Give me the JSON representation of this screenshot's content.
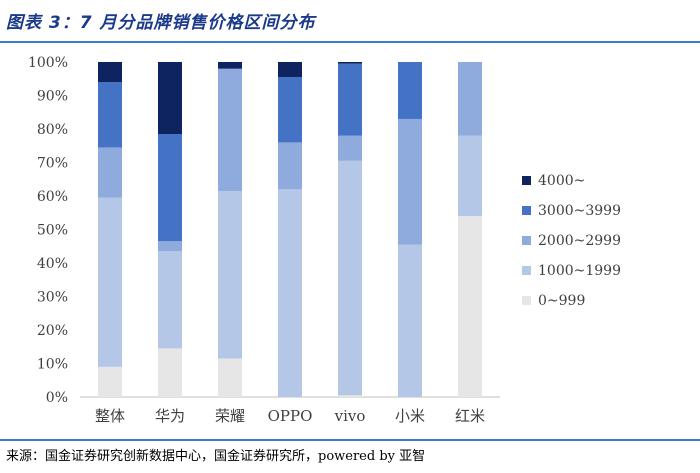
{
  "title": "图表 3：7 月分品牌销售价格区间分布",
  "source": "来源：国金证券研究创新数据中心，国金证券研究所，powered by 亚智",
  "chart_data": {
    "type": "bar",
    "stacked": true,
    "categories": [
      "整体",
      "华为",
      "荣耀",
      "OPPO",
      "vivo",
      "小米",
      "红米"
    ],
    "series": [
      {
        "name": "0~999",
        "color": "#e7e6e6",
        "values": [
          9,
          14.5,
          11.5,
          0,
          0.5,
          0,
          54
        ]
      },
      {
        "name": "1000~1999",
        "color": "#b4c7e7",
        "values": [
          50.5,
          29,
          50,
          62,
          70,
          45.5,
          24
        ]
      },
      {
        "name": "2000~2999",
        "color": "#8faadc",
        "values": [
          15,
          3,
          36.5,
          14,
          7.5,
          37.5,
          22
        ]
      },
      {
        "name": "3000~3999",
        "color": "#4472c4",
        "values": [
          19.5,
          32,
          0,
          19.5,
          21.5,
          17,
          0
        ]
      },
      {
        "name": "4000~",
        "color": "#0e2461",
        "values": [
          6,
          21.5,
          2,
          4.5,
          0.5,
          0,
          0
        ]
      }
    ],
    "ylim": [
      0,
      100
    ],
    "yticks": [
      "0%",
      "10%",
      "20%",
      "30%",
      "40%",
      "50%",
      "60%",
      "70%",
      "80%",
      "90%",
      "100%"
    ],
    "legend_position": "right",
    "grid": false
  }
}
